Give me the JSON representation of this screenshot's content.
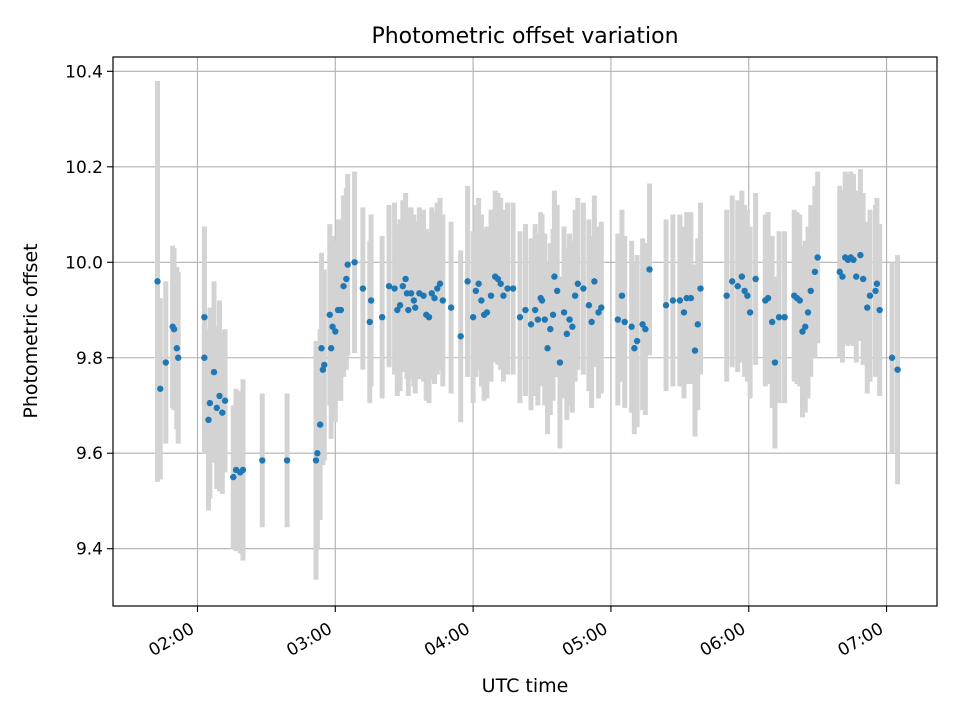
{
  "chart_data": {
    "type": "scatter",
    "title": "Photometric offset variation",
    "xlabel": "UTC time",
    "ylabel": "Photometric offset",
    "x_tick_labels": [
      "02:00",
      "03:00",
      "04:00",
      "05:00",
      "06:00",
      "07:00"
    ],
    "y_tick_labels": [
      "9.4",
      "9.6",
      "9.8",
      "10.0",
      "10.2",
      "10.4"
    ],
    "x_ticks_hours": [
      2,
      3,
      4,
      5,
      6,
      7
    ],
    "y_ticks": [
      9.4,
      9.6,
      9.8,
      10.0,
      10.2,
      10.4
    ],
    "xlim_hours": [
      1.387,
      7.366
    ],
    "ylim": [
      9.28,
      10.43
    ],
    "grid": true,
    "marker_color": "#1f77b4",
    "errorbar_color": "#d3d3d3",
    "series": [
      {
        "points": [
          [
            1.71,
            9.96,
            0.42
          ],
          [
            1.73,
            9.735,
            0.19
          ],
          [
            1.77,
            9.79,
            0.17
          ],
          [
            1.82,
            9.865,
            0.17
          ],
          [
            1.83,
            9.86,
            0.17
          ],
          [
            1.85,
            9.82,
            0.17
          ],
          [
            1.86,
            9.8,
            0.18
          ],
          [
            2.05,
            9.885,
            0.19
          ],
          [
            2.05,
            9.8,
            0.2
          ],
          [
            2.08,
            9.67,
            0.19
          ],
          [
            2.09,
            9.705,
            0.2
          ],
          [
            2.12,
            9.77,
            0.19
          ],
          [
            2.14,
            9.695,
            0.17
          ],
          [
            2.16,
            9.72,
            0.2
          ],
          [
            2.18,
            9.685,
            0.17
          ],
          [
            2.2,
            9.71,
            0.15
          ],
          [
            2.26,
            9.55,
            0.15
          ],
          [
            2.28,
            9.565,
            0.17
          ],
          [
            2.31,
            9.56,
            0.17
          ],
          [
            2.33,
            9.565,
            0.19
          ],
          [
            2.47,
            9.585,
            0.14
          ],
          [
            2.65,
            9.585,
            0.14
          ],
          [
            2.86,
            9.585,
            0.25
          ],
          [
            2.87,
            9.6,
            0.2
          ],
          [
            2.89,
            9.66,
            0.2
          ],
          [
            2.9,
            9.82,
            0.2
          ],
          [
            2.91,
            9.775,
            0.2
          ],
          [
            2.92,
            9.785,
            0.2
          ],
          [
            2.96,
            9.89,
            0.19
          ],
          [
            2.97,
            9.82,
            0.19
          ],
          [
            2.98,
            9.865,
            0.19
          ],
          [
            3.0,
            9.855,
            0.19
          ],
          [
            3.02,
            9.9,
            0.19
          ],
          [
            3.04,
            9.9,
            0.19
          ],
          [
            3.06,
            9.95,
            0.19
          ],
          [
            3.08,
            9.965,
            0.19
          ],
          [
            3.09,
            9.995,
            0.19
          ],
          [
            3.14,
            10.0,
            0.19
          ],
          [
            3.2,
            9.945,
            0.17
          ],
          [
            3.25,
            9.875,
            0.17
          ],
          [
            3.26,
            9.92,
            0.18
          ],
          [
            3.34,
            9.885,
            0.17
          ],
          [
            3.39,
            9.95,
            0.17
          ],
          [
            3.43,
            9.945,
            0.18
          ],
          [
            3.45,
            9.9,
            0.18
          ],
          [
            3.47,
            9.91,
            0.18
          ],
          [
            3.49,
            9.95,
            0.18
          ],
          [
            3.51,
            9.965,
            0.18
          ],
          [
            3.52,
            9.935,
            0.18
          ],
          [
            3.53,
            9.9,
            0.18
          ],
          [
            3.55,
            9.935,
            0.18
          ],
          [
            3.57,
            9.92,
            0.18
          ],
          [
            3.58,
            9.905,
            0.18
          ],
          [
            3.61,
            9.935,
            0.18
          ],
          [
            3.64,
            9.93,
            0.18
          ],
          [
            3.66,
            9.89,
            0.18
          ],
          [
            3.68,
            9.885,
            0.18
          ],
          [
            3.7,
            9.935,
            0.18
          ],
          [
            3.72,
            9.925,
            0.18
          ],
          [
            3.74,
            9.945,
            0.18
          ],
          [
            3.76,
            9.955,
            0.18
          ],
          [
            3.78,
            9.92,
            0.18
          ],
          [
            3.84,
            9.905,
            0.18
          ],
          [
            3.91,
            9.845,
            0.18
          ],
          [
            3.96,
            9.96,
            0.2
          ],
          [
            4.0,
            9.885,
            0.18
          ],
          [
            4.02,
            9.94,
            0.18
          ],
          [
            4.04,
            9.955,
            0.18
          ],
          [
            4.06,
            9.92,
            0.18
          ],
          [
            4.08,
            9.89,
            0.18
          ],
          [
            4.1,
            9.895,
            0.18
          ],
          [
            4.13,
            9.93,
            0.18
          ],
          [
            4.16,
            9.97,
            0.18
          ],
          [
            4.18,
            9.965,
            0.18
          ],
          [
            4.2,
            9.955,
            0.18
          ],
          [
            4.22,
            9.93,
            0.18
          ],
          [
            4.25,
            9.945,
            0.18
          ],
          [
            4.29,
            9.945,
            0.18
          ],
          [
            4.34,
            9.885,
            0.18
          ],
          [
            4.38,
            9.9,
            0.18
          ],
          [
            4.42,
            9.87,
            0.18
          ],
          [
            4.45,
            9.9,
            0.18
          ],
          [
            4.47,
            9.88,
            0.18
          ],
          [
            4.49,
            9.925,
            0.18
          ],
          [
            4.5,
            9.92,
            0.18
          ],
          [
            4.52,
            9.88,
            0.18
          ],
          [
            4.54,
            9.82,
            0.18
          ],
          [
            4.56,
            9.86,
            0.18
          ],
          [
            4.58,
            9.89,
            0.18
          ],
          [
            4.59,
            9.97,
            0.18
          ],
          [
            4.61,
            9.94,
            0.18
          ],
          [
            4.63,
            9.79,
            0.18
          ],
          [
            4.66,
            9.895,
            0.18
          ],
          [
            4.68,
            9.85,
            0.18
          ],
          [
            4.7,
            9.88,
            0.18
          ],
          [
            4.72,
            9.865,
            0.18
          ],
          [
            4.74,
            9.93,
            0.18
          ],
          [
            4.76,
            9.955,
            0.18
          ],
          [
            4.8,
            9.945,
            0.18
          ],
          [
            4.84,
            9.91,
            0.18
          ],
          [
            4.86,
            9.875,
            0.18
          ],
          [
            4.88,
            9.96,
            0.18
          ],
          [
            4.91,
            9.895,
            0.18
          ],
          [
            4.93,
            9.905,
            0.18
          ],
          [
            5.05,
            9.88,
            0.18
          ],
          [
            5.08,
            9.93,
            0.18
          ],
          [
            5.1,
            9.875,
            0.18
          ],
          [
            5.15,
            9.865,
            0.18
          ],
          [
            5.17,
            9.82,
            0.18
          ],
          [
            5.19,
            9.835,
            0.18
          ],
          [
            5.23,
            9.87,
            0.18
          ],
          [
            5.25,
            9.86,
            0.18
          ],
          [
            5.28,
            9.985,
            0.18
          ],
          [
            5.4,
            9.91,
            0.18
          ],
          [
            5.45,
            9.92,
            0.18
          ],
          [
            5.5,
            9.92,
            0.18
          ],
          [
            5.53,
            9.895,
            0.18
          ],
          [
            5.55,
            9.925,
            0.18
          ],
          [
            5.58,
            9.925,
            0.18
          ],
          [
            5.61,
            9.815,
            0.18
          ],
          [
            5.63,
            9.87,
            0.18
          ],
          [
            5.65,
            9.945,
            0.18
          ],
          [
            5.84,
            9.93,
            0.18
          ],
          [
            5.88,
            9.96,
            0.18
          ],
          [
            5.92,
            9.95,
            0.18
          ],
          [
            5.95,
            9.97,
            0.18
          ],
          [
            5.97,
            9.94,
            0.18
          ],
          [
            5.99,
            9.93,
            0.18
          ],
          [
            6.01,
            9.895,
            0.18
          ],
          [
            6.05,
            9.965,
            0.18
          ],
          [
            6.12,
            9.92,
            0.18
          ],
          [
            6.14,
            9.925,
            0.18
          ],
          [
            6.17,
            9.875,
            0.18
          ],
          [
            6.19,
            9.79,
            0.18
          ],
          [
            6.22,
            9.885,
            0.18
          ],
          [
            6.26,
            9.885,
            0.18
          ],
          [
            6.33,
            9.93,
            0.18
          ],
          [
            6.35,
            9.925,
            0.18
          ],
          [
            6.37,
            9.92,
            0.18
          ],
          [
            6.39,
            9.855,
            0.18
          ],
          [
            6.41,
            9.865,
            0.18
          ],
          [
            6.43,
            9.895,
            0.18
          ],
          [
            6.45,
            9.94,
            0.18
          ],
          [
            6.48,
            9.98,
            0.18
          ],
          [
            6.5,
            10.01,
            0.18
          ],
          [
            6.66,
            9.98,
            0.18
          ],
          [
            6.68,
            9.97,
            0.18
          ],
          [
            6.7,
            10.01,
            0.18
          ],
          [
            6.72,
            10.005,
            0.18
          ],
          [
            6.74,
            10.01,
            0.18
          ],
          [
            6.76,
            10.005,
            0.18
          ],
          [
            6.78,
            9.97,
            0.18
          ],
          [
            6.81,
            10.015,
            0.18
          ],
          [
            6.83,
            9.965,
            0.18
          ],
          [
            6.86,
            9.905,
            0.18
          ],
          [
            6.88,
            9.93,
            0.18
          ],
          [
            6.92,
            9.94,
            0.18
          ],
          [
            6.93,
            9.955,
            0.18
          ],
          [
            6.95,
            9.9,
            0.18
          ],
          [
            7.04,
            9.8,
            0.2
          ],
          [
            7.08,
            9.775,
            0.24
          ]
        ]
      }
    ]
  }
}
